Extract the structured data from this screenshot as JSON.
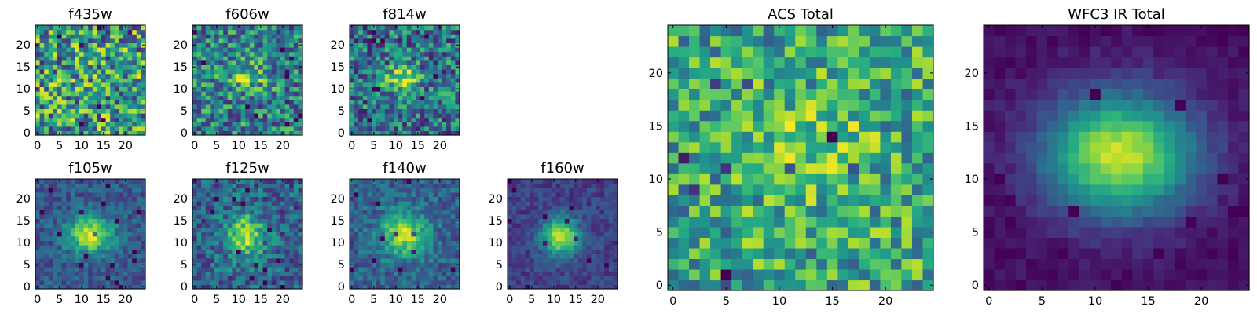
{
  "chart_data": [
    {
      "type": "heatmap",
      "title": "f435w",
      "xlim": [
        0,
        24
      ],
      "ylim": [
        0,
        24
      ],
      "xticks": [
        "0",
        "5",
        "10",
        "15",
        "20"
      ],
      "yticks": [
        "0",
        "5",
        "10",
        "15",
        "20"
      ],
      "colormap": "viridis",
      "grid": false
    },
    {
      "type": "heatmap",
      "title": "f606w",
      "xlim": [
        0,
        24
      ],
      "ylim": [
        0,
        24
      ],
      "xticks": [
        "0",
        "5",
        "10",
        "15",
        "20"
      ],
      "yticks": [
        "0",
        "5",
        "10",
        "15",
        "20"
      ],
      "colormap": "viridis",
      "grid": false
    },
    {
      "type": "heatmap",
      "title": "f814w",
      "xlim": [
        0,
        24
      ],
      "ylim": [
        0,
        24
      ],
      "xticks": [
        "0",
        "5",
        "10",
        "15",
        "20"
      ],
      "yticks": [
        "0",
        "5",
        "10",
        "15",
        "20"
      ],
      "colormap": "viridis",
      "grid": false
    },
    {
      "type": "heatmap",
      "title": "f105w",
      "xlim": [
        0,
        24
      ],
      "ylim": [
        0,
        24
      ],
      "xticks": [
        "0",
        "5",
        "10",
        "15",
        "20"
      ],
      "yticks": [
        "0",
        "5",
        "10",
        "15",
        "20"
      ],
      "colormap": "viridis",
      "grid": false
    },
    {
      "type": "heatmap",
      "title": "f125w",
      "xlim": [
        0,
        24
      ],
      "ylim": [
        0,
        24
      ],
      "xticks": [
        "0",
        "5",
        "10",
        "15",
        "20"
      ],
      "yticks": [
        "0",
        "5",
        "10",
        "15",
        "20"
      ],
      "colormap": "viridis",
      "grid": false
    },
    {
      "type": "heatmap",
      "title": "f140w",
      "xlim": [
        0,
        24
      ],
      "ylim": [
        0,
        24
      ],
      "xticks": [
        "0",
        "5",
        "10",
        "15",
        "20"
      ],
      "yticks": [
        "0",
        "5",
        "10",
        "15",
        "20"
      ],
      "colormap": "viridis",
      "grid": false
    },
    {
      "type": "heatmap",
      "title": "f160w",
      "xlim": [
        0,
        24
      ],
      "ylim": [
        0,
        24
      ],
      "xticks": [
        "0",
        "5",
        "10",
        "15",
        "20"
      ],
      "yticks": [
        "0",
        "5",
        "10",
        "15",
        "20"
      ],
      "colormap": "viridis",
      "grid": false
    },
    {
      "type": "heatmap",
      "title": "ACS Total",
      "xlim": [
        0,
        24
      ],
      "ylim": [
        0,
        24
      ],
      "xticks": [
        "0",
        "5",
        "10",
        "15",
        "20"
      ],
      "yticks": [
        "0",
        "5",
        "10",
        "15",
        "20"
      ],
      "colormap": "viridis",
      "grid": false
    },
    {
      "type": "heatmap",
      "title": "WFC3 IR Total",
      "xlim": [
        0,
        24
      ],
      "ylim": [
        0,
        24
      ],
      "xticks": [
        "0",
        "5",
        "10",
        "15",
        "20"
      ],
      "yticks": [
        "0",
        "5",
        "10",
        "15",
        "20"
      ],
      "colormap": "viridis",
      "grid": false
    }
  ],
  "colors": {
    "viridis_low": "#440154",
    "viridis_mid": "#21918c",
    "viridis_high": "#fde725",
    "frame": "#000000",
    "background": "#ffffff"
  }
}
